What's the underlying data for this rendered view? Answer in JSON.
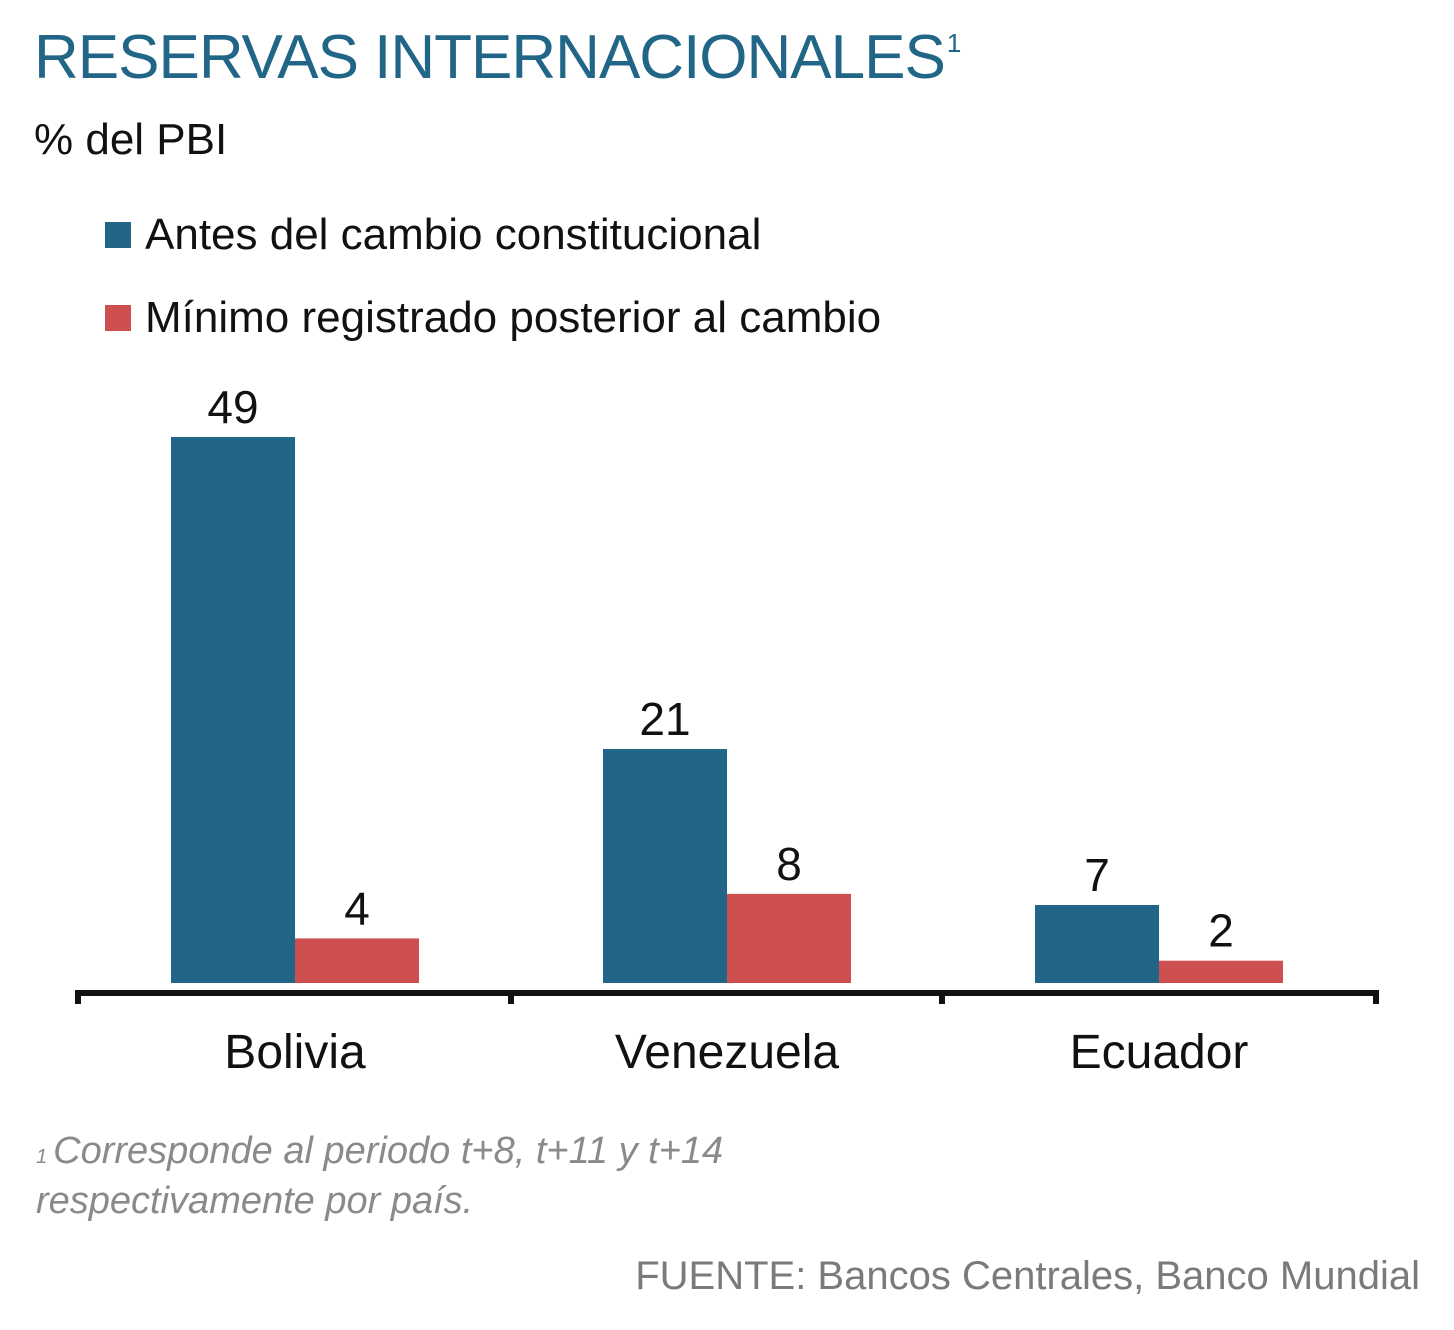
{
  "header": {
    "title": "RESERVAS INTERNACIONALES",
    "title_sup": "1",
    "subtitle": "% del PBI"
  },
  "legend": [
    {
      "label": "Antes del cambio constitucional",
      "color": "#216587"
    },
    {
      "label": "Mínimo registrado posterior al cambio",
      "color": "#cd4f4f"
    }
  ],
  "chart_data": {
    "type": "bar",
    "categories": [
      "Bolivia",
      "Venezuela",
      "Ecuador"
    ],
    "series": [
      {
        "name": "Antes del cambio constitucional",
        "values": [
          49,
          21,
          7
        ],
        "color": "#216587"
      },
      {
        "name": "Mínimo registrado posterior al cambio",
        "values": [
          4,
          8,
          2
        ],
        "color": "#cd4f4f"
      }
    ],
    "title": "RESERVAS INTERNACIONALES",
    "ylabel": "% del PBI",
    "ylim": [
      0,
      49
    ],
    "grid": false,
    "legend_position": "top-left"
  },
  "footnote": {
    "marker": "1",
    "line1": "Corresponde al periodo t+8, t+11 y t+14",
    "line2": "respectivamente por país."
  },
  "source": "FUENTE: Bancos Centrales, Banco Mundial"
}
